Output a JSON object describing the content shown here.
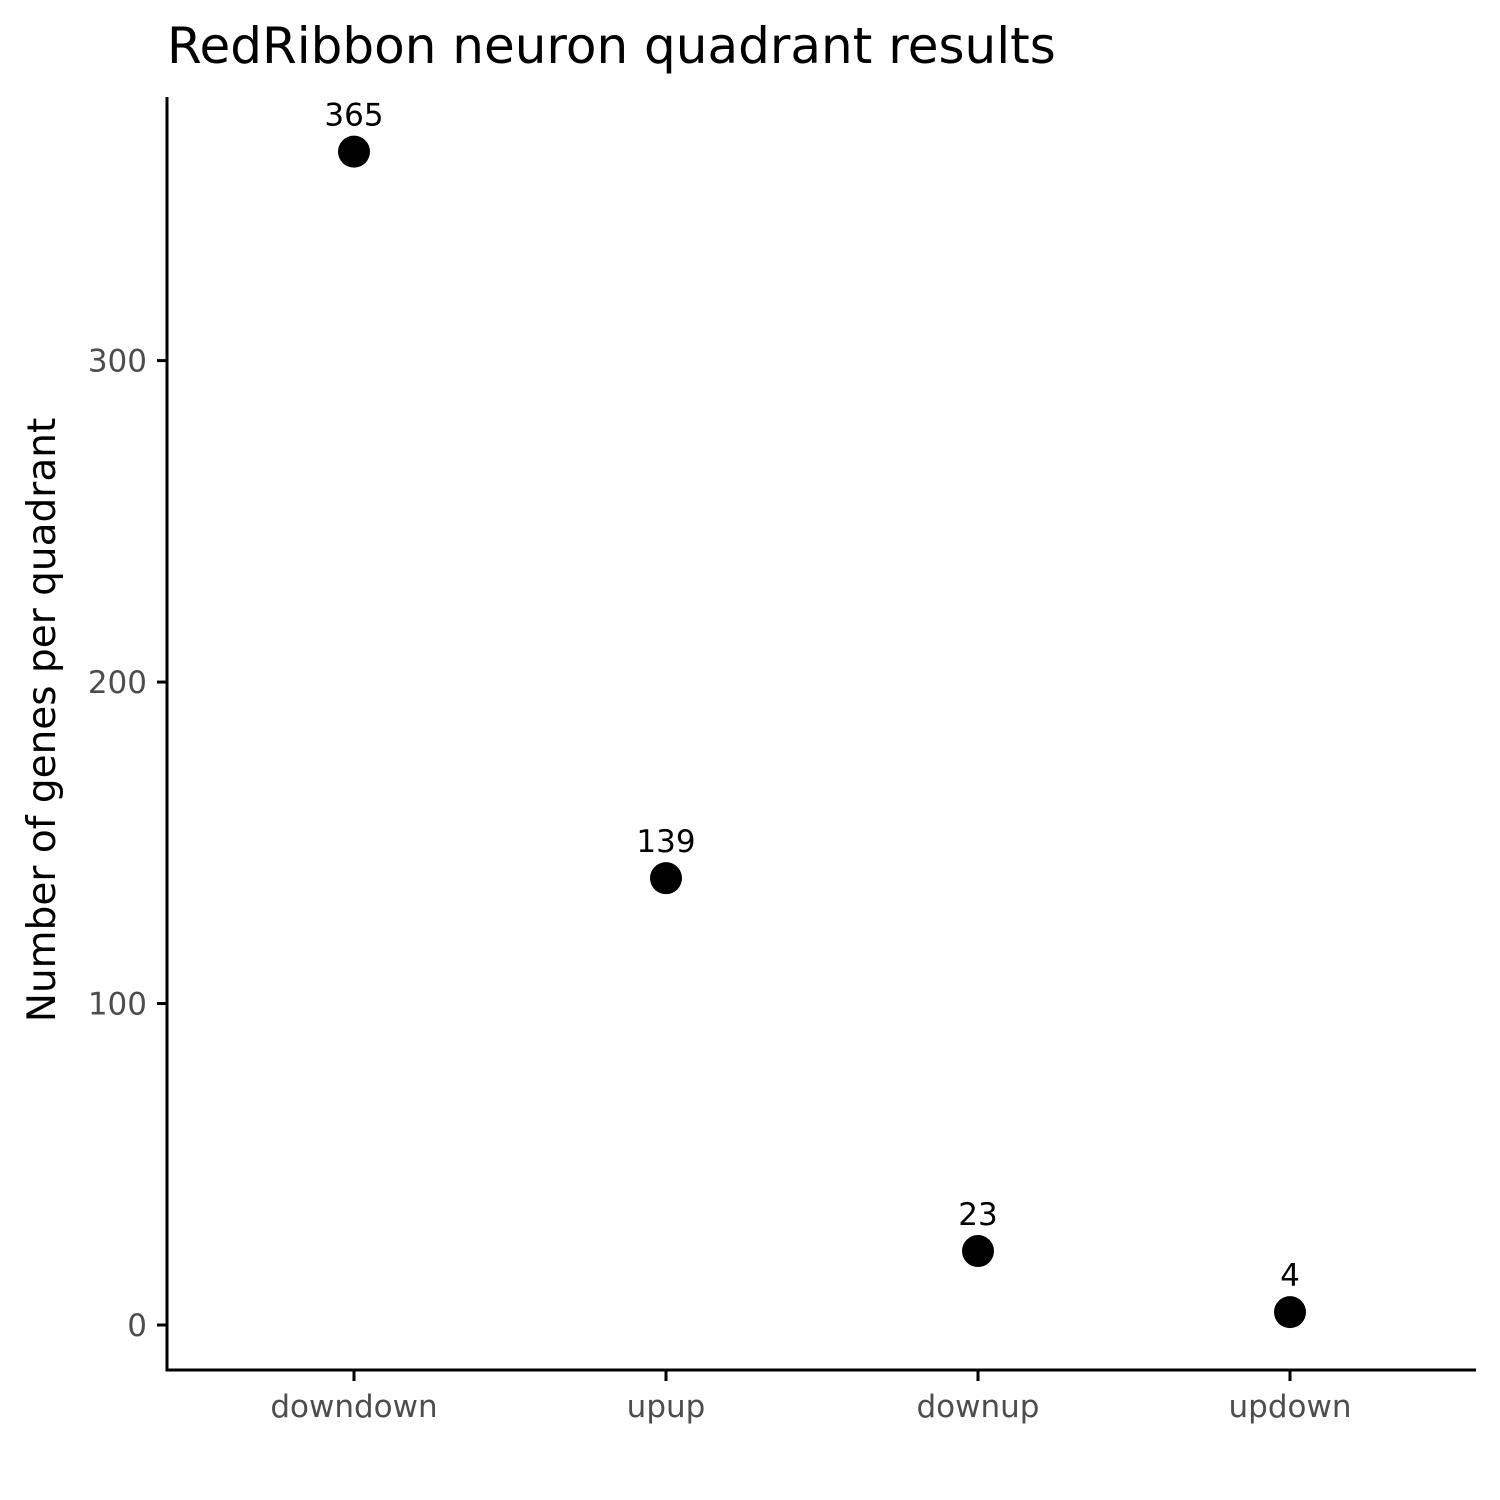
{
  "chart_data": {
    "type": "scatter",
    "title": "RedRibbon neuron quadrant results",
    "xlabel": "",
    "ylabel": "Number of genes per quadrant",
    "categories": [
      "downdown",
      "upup",
      "downup",
      "updown"
    ],
    "values": [
      365,
      139,
      23,
      4
    ],
    "data_labels": [
      "365",
      "139",
      "23",
      "4"
    ],
    "yticks": [
      0,
      100,
      200,
      300
    ],
    "ytick_labels": [
      "0",
      "100",
      "200",
      "300"
    ],
    "ylim": [
      -14,
      382
    ],
    "grid": false,
    "legend": "none",
    "colors": {
      "point": "#000000",
      "axis": "#000000",
      "tick_label": "#4d4d4d",
      "background": "#ffffff"
    }
  }
}
